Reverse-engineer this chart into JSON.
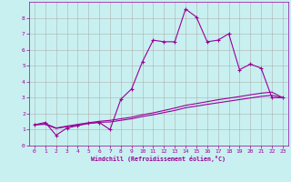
{
  "xlabel": "Windchill (Refroidissement éolien,°C)",
  "bg_color": "#c8f0f0",
  "line_color": "#990099",
  "grid_color": "#b0b0b0",
  "xlim": [
    -0.5,
    23.5
  ],
  "ylim": [
    0,
    9
  ],
  "xticks": [
    0,
    1,
    2,
    3,
    4,
    5,
    6,
    7,
    8,
    9,
    10,
    11,
    12,
    13,
    14,
    15,
    16,
    17,
    18,
    19,
    20,
    21,
    22,
    23
  ],
  "yticks": [
    0,
    1,
    2,
    3,
    4,
    5,
    6,
    7,
    8
  ],
  "series1_x": [
    0,
    1,
    2,
    3,
    4,
    5,
    6,
    7,
    8,
    9,
    10,
    11,
    12,
    13,
    14,
    15,
    16,
    17,
    18,
    19,
    20,
    21,
    22,
    23
  ],
  "series1_y": [
    1.3,
    1.45,
    0.65,
    1.1,
    1.25,
    1.4,
    1.45,
    1.0,
    2.9,
    3.55,
    5.25,
    6.6,
    6.5,
    6.5,
    8.55,
    8.05,
    6.5,
    6.6,
    7.0,
    4.75,
    5.1,
    4.85,
    3.0,
    3.0
  ],
  "series2_x": [
    0,
    1,
    2,
    3,
    4,
    5,
    6,
    7,
    8,
    9,
    10,
    11,
    12,
    13,
    14,
    15,
    16,
    17,
    18,
    19,
    20,
    21,
    22,
    23
  ],
  "series2_y": [
    1.3,
    1.38,
    1.1,
    1.22,
    1.33,
    1.43,
    1.52,
    1.58,
    1.68,
    1.78,
    1.93,
    2.05,
    2.2,
    2.35,
    2.52,
    2.63,
    2.75,
    2.87,
    2.97,
    3.07,
    3.18,
    3.28,
    3.35,
    3.0
  ],
  "series3_x": [
    0,
    1,
    2,
    3,
    4,
    5,
    6,
    7,
    8,
    9,
    10,
    11,
    12,
    13,
    14,
    15,
    16,
    17,
    18,
    19,
    20,
    21,
    22,
    23
  ],
  "series3_y": [
    1.3,
    1.33,
    1.08,
    1.18,
    1.28,
    1.38,
    1.46,
    1.48,
    1.58,
    1.68,
    1.82,
    1.93,
    2.07,
    2.2,
    2.37,
    2.47,
    2.58,
    2.68,
    2.78,
    2.88,
    2.98,
    3.08,
    3.15,
    3.0
  ]
}
